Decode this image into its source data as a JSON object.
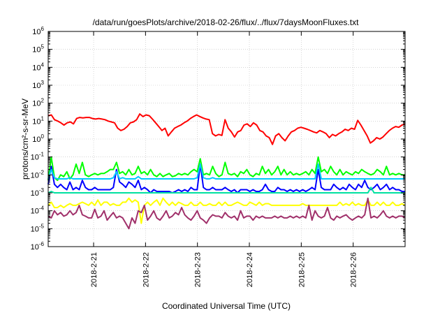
{
  "chart_data": {
    "type": "line",
    "title": "/data/run/goesPlots/archive/2018-02-26/flux/../flux/7daysMoonFluxes.txt",
    "xlabel": "Coordinated Universal Time (UTC)",
    "ylabel": "protons/cm²-s-sr-MeV",
    "yscale": "log",
    "ylim_exp": [
      -6,
      6
    ],
    "xlim_days": [
      "2018-02-20 03:00",
      "2018-02-27 00:00"
    ],
    "x_ticks": [
      "2018-2-21",
      "2018-2-22",
      "2018-2-23",
      "2018-2-24",
      "2018-2-25",
      "2018-2-26"
    ],
    "grid": true,
    "series": [
      {
        "color": "#ff0000",
        "values": [
          20,
          22,
          12,
          10,
          8,
          6,
          8,
          9,
          7,
          14,
          16,
          15,
          16,
          16,
          14,
          13,
          14,
          13,
          12,
          10,
          9,
          8,
          4,
          3,
          3.5,
          5,
          8,
          9,
          12,
          25,
          18,
          22,
          20,
          13,
          8,
          5,
          3,
          4,
          1.5,
          2.5,
          4,
          5,
          6,
          8,
          10,
          14,
          18,
          22,
          18,
          15,
          13,
          12,
          2,
          1.5,
          1.8,
          1.6,
          12,
          4,
          2.5,
          1.3,
          2.5,
          3,
          6,
          7,
          5,
          8,
          6,
          3,
          2.5,
          1.5,
          1.2,
          0.5,
          1.5,
          2,
          1.2,
          0.8,
          1.5,
          2.5,
          3,
          4,
          4.5,
          4,
          3.5,
          3,
          2.5,
          2.2,
          3,
          2.5,
          2,
          1.2,
          1.8,
          1.5,
          2,
          2.5,
          3.5,
          3,
          4,
          3.5,
          11,
          6,
          3,
          1.5,
          0.6,
          0.8,
          1.2,
          1,
          1.3,
          2,
          3,
          4,
          5,
          4.5,
          6,
          7
        ]
      },
      {
        "color": "#00ff00",
        "values": [
          0.005,
          0.1,
          0.007,
          0.005,
          0.01,
          0.008,
          0.015,
          0.006,
          0.01,
          0.04,
          0.012,
          0.05,
          0.01,
          0.008,
          0.01,
          0.012,
          0.01,
          0.012,
          0.012,
          0.015,
          0.02,
          0.02,
          0.05,
          0.012,
          0.015,
          0.01,
          0.02,
          0.01,
          0.012,
          0.03,
          0.012,
          0.015,
          0.01,
          0.02,
          0.01,
          0.008,
          0.012,
          0.008,
          0.01,
          0.012,
          0.008,
          0.009,
          0.012,
          0.01,
          0.012,
          0.01,
          0.015,
          0.02,
          0.015,
          0.08,
          0.01,
          0.012,
          0.01,
          0.03,
          0.012,
          0.008,
          0.01,
          0.05,
          0.012,
          0.01,
          0.012,
          0.008,
          0.015,
          0.012,
          0.02,
          0.01,
          0.008,
          0.012,
          0.01,
          0.03,
          0.012,
          0.02,
          0.01,
          0.015,
          0.03,
          0.01,
          0.02,
          0.01,
          0.015,
          0.01,
          0.012,
          0.01,
          0.012,
          0.015,
          0.01,
          0.02,
          0.012,
          0.1,
          0.015,
          0.02,
          0.012,
          0.03,
          0.015,
          0.01,
          0.02,
          0.01,
          0.015,
          0.012,
          0.01,
          0.015,
          0.012,
          0.02,
          0.015,
          0.012,
          0.01,
          0.012,
          0.02,
          0.015,
          0.01,
          0.03,
          0.01,
          0.012,
          0.01,
          0.012,
          0.01,
          0.01
        ]
      },
      {
        "color": "#0000ff",
        "values": [
          0.003,
          0.03,
          0.003,
          0.002,
          0.003,
          0.002,
          0.0015,
          0.004,
          0.0015,
          0.002,
          0.0015,
          0.005,
          0.002,
          0.0015,
          0.0015,
          0.002,
          0.0015,
          0.0015,
          0.0015,
          0.0015,
          0.0015,
          0.002,
          0.02,
          0.004,
          0.003,
          0.002,
          0.004,
          0.003,
          0.002,
          0.005,
          0.0015,
          0.002,
          0.0015,
          0.001,
          0.0015,
          0.0012,
          0.0012,
          0.0012,
          0.0012,
          0.0012,
          0.001,
          0.0012,
          0.0015,
          0.0012,
          0.0015,
          0.0012,
          0.002,
          0.0015,
          0.0015,
          0.04,
          0.002,
          0.0015,
          0.0015,
          0.002,
          0.0015,
          0.0015,
          0.0015,
          0.002,
          0.0015,
          0.0012,
          0.0015,
          0.001,
          0.0015,
          0.0015,
          0.0015,
          0.0012,
          0.0015,
          0.0012,
          0.0012,
          0.0015,
          0.003,
          0.0015,
          0.0012,
          0.0012,
          0.002,
          0.0015,
          0.0015,
          0.0012,
          0.0015,
          0.0012,
          0.0015,
          0.0012,
          0.0015,
          0.0012,
          0.0015,
          0.002,
          0.0015,
          0.02,
          0.002,
          0.0015,
          0.0015,
          0.0015,
          0.003,
          0.002,
          0.0015,
          0.002,
          0.0015,
          0.003,
          0.002,
          0.0015,
          0.003,
          0.002,
          0.005,
          0.002,
          0.0015,
          0.002,
          0.003,
          0.0015,
          0.002,
          0.003,
          0.0015,
          0.002,
          0.0015,
          0.0015,
          0.0012,
          0.0012
        ]
      },
      {
        "color": "#00c8ff",
        "values": [
          0.006,
          0.02,
          0.007,
          0.006,
          0.006,
          0.006,
          0.006,
          0.007,
          0.006,
          0.006,
          0.006,
          0.006,
          0.006,
          0.006,
          0.006,
          0.006,
          0.006,
          0.006,
          0.006,
          0.006,
          0.006,
          0.007,
          0.015,
          0.006,
          0.007,
          0.006,
          0.006,
          0.006,
          0.006,
          0.008,
          0.006,
          0.006,
          0.006,
          0.006,
          0.006,
          0.006,
          0.006,
          0.006,
          0.006,
          0.006,
          0.006,
          0.006,
          0.006,
          0.006,
          0.006,
          0.006,
          0.006,
          0.006,
          0.007,
          0.04,
          0.007,
          0.006,
          0.006,
          0.007,
          0.006,
          0.006,
          0.006,
          0.006,
          0.006,
          0.006,
          0.006,
          0.006,
          0.006,
          0.006,
          0.006,
          0.006,
          0.006,
          0.006,
          0.006,
          0.006,
          0.006,
          0.006,
          0.006,
          0.006,
          0.006,
          0.006,
          0.006,
          0.006,
          0.006,
          0.006,
          0.006,
          0.006,
          0.006,
          0.006,
          0.006,
          0.006,
          0.006,
          0.04,
          0.006,
          0.006,
          0.006,
          0.006,
          0.006,
          0.006,
          0.006,
          0.006,
          0.006,
          0.006,
          0.006,
          0.006,
          0.006,
          0.006,
          0.006,
          0.006,
          0.006,
          0.006,
          0.006,
          0.006,
          0.006,
          0.006,
          0.006,
          0.006,
          0.006,
          0.006,
          0.006,
          0.006
        ]
      },
      {
        "color": "#00e0a0",
        "values": [
          0.001,
          0.0012,
          0.001,
          0.001,
          0.001,
          0.001,
          0.001,
          0.001,
          0.001,
          0.001,
          0.001,
          0.001,
          0.001,
          0.001,
          0.001,
          0.001,
          0.001,
          0.001,
          0.001,
          0.001,
          0.001,
          0.001,
          0.001,
          0.001,
          0.001,
          0.001,
          0.001,
          0.001,
          0.001,
          0.001,
          0.001,
          0.001,
          0.001,
          0.001,
          0.001,
          0.001,
          0.001,
          0.001,
          0.001,
          0.001,
          0.001,
          0.001,
          0.001,
          0.001,
          0.001,
          0.001,
          0.001,
          0.001,
          0.001,
          0.001,
          0.001,
          0.001,
          0.001,
          0.001,
          0.001,
          0.001,
          0.001,
          0.001,
          0.001,
          0.001,
          0.001,
          0.001,
          0.001,
          0.001,
          0.001,
          0.001,
          0.001,
          0.001,
          0.001,
          0.001,
          0.001,
          0.001,
          0.001,
          0.001,
          0.001,
          0.001,
          0.001,
          0.001,
          0.001,
          0.001,
          0.001,
          0.001,
          0.001,
          0.001,
          0.001,
          0.001,
          0.001,
          0.001,
          0.001,
          0.001,
          0.001,
          0.001,
          0.001,
          0.001,
          0.001,
          0.001,
          0.001,
          0.001,
          0.001,
          0.001,
          0.001,
          0.001,
          0.001,
          0.001,
          0.002,
          0.001,
          0.001,
          0.001,
          0.001,
          0.001,
          0.001,
          0.001,
          0.001,
          0.001,
          0.001,
          0.001
        ]
      },
      {
        "color": "#ffff00",
        "values": [
          0.0002,
          0.0003,
          0.00015,
          0.00015,
          0.0002,
          0.00015,
          0.0002,
          0.00025,
          0.0002,
          0.0002,
          0.00025,
          0.0003,
          0.00025,
          0.0002,
          0.0003,
          0.0002,
          0.0004,
          0.0002,
          0.0003,
          0.0003,
          0.0002,
          0.00025,
          0.0002,
          0.0002,
          0.0003,
          0.0003,
          0.0005,
          0.0003,
          0.0004,
          0.0003,
          2e-05,
          0.0002,
          0.0003,
          0.0002,
          0.0003,
          0.0004,
          0.0002,
          0.0005,
          0.0003,
          0.0002,
          0.0003,
          0.0002,
          0.0003,
          0.00025,
          0.0002,
          0.0002,
          0.0003,
          0.0002,
          0.0002,
          0.0003,
          0.0002,
          0.0002,
          0.00025,
          0.0002,
          0.0002,
          0.0003,
          0.0002,
          0.0003,
          0.0002,
          0.0002,
          0.00025,
          0.0003,
          0.00025,
          0.0002,
          0.0002,
          0.0003,
          0.00025,
          0.0002,
          0.0003,
          0.0002,
          0.00025,
          0.00025,
          0.0002,
          0.0002,
          0.0002,
          0.0002,
          0.0002,
          0.0002,
          0.0002,
          0.0002,
          0.0002,
          0.0002,
          0.00025,
          0.0002,
          0.0002,
          0.0002,
          0.0002,
          0.0002,
          0.0002,
          0.0002,
          0.0002,
          0.0002,
          0.0002,
          0.0002,
          0.0003,
          0.0002,
          0.00025,
          0.0002,
          0.0003,
          0.0002,
          0.00025,
          0.0002,
          0.0002,
          0.0004,
          0.0002,
          0.0002,
          0.0003,
          0.0002,
          0.0003,
          0.0002,
          0.0002,
          0.0003,
          0.0002,
          0.0002,
          0.00025,
          0.0002
        ]
      },
      {
        "color": "#a0306a",
        "values": [
          5e-05,
          4e-05,
          0.0001,
          6e-05,
          8e-05,
          5e-05,
          6e-05,
          0.0001,
          6e-05,
          8e-05,
          0.0002,
          6e-05,
          5e-05,
          4e-05,
          4e-05,
          0.00012,
          4e-05,
          5e-05,
          0.0001,
          3e-05,
          5e-05,
          8e-05,
          4e-05,
          5e-05,
          4e-05,
          2e-05,
          1e-05,
          4e-05,
          2e-05,
          0.0001,
          8e-05,
          0.0002,
          3e-05,
          5e-05,
          0.0001,
          4e-05,
          3e-05,
          5e-05,
          0.0001,
          4e-05,
          5e-05,
          8e-05,
          6e-05,
          0.00015,
          6e-05,
          4e-05,
          3e-05,
          5e-05,
          0.0001,
          4e-05,
          3e-05,
          2e-05,
          4e-05,
          6e-05,
          5e-05,
          5e-05,
          4e-05,
          8e-05,
          5e-05,
          4e-05,
          5e-05,
          3e-05,
          0.0001,
          4e-05,
          5e-05,
          5e-05,
          3e-05,
          5e-05,
          4e-05,
          5e-05,
          4e-05,
          4e-05,
          4e-05,
          5e-05,
          4e-05,
          5e-05,
          4e-05,
          4e-05,
          5e-05,
          4e-05,
          5e-05,
          4e-05,
          5e-05,
          4e-05,
          0.0002,
          3e-05,
          0.0001,
          5e-05,
          4e-05,
          5e-05,
          0.00015,
          4e-05,
          3e-05,
          5e-05,
          4e-05,
          5e-05,
          6e-05,
          4e-05,
          3e-05,
          4e-05,
          5e-05,
          4e-05,
          6e-05,
          0.0005,
          4e-05,
          5e-05,
          4e-05,
          6e-05,
          0.0001,
          5e-05,
          4e-05,
          5e-05,
          4e-05,
          5e-05,
          5e-05,
          4e-05
        ]
      }
    ]
  }
}
